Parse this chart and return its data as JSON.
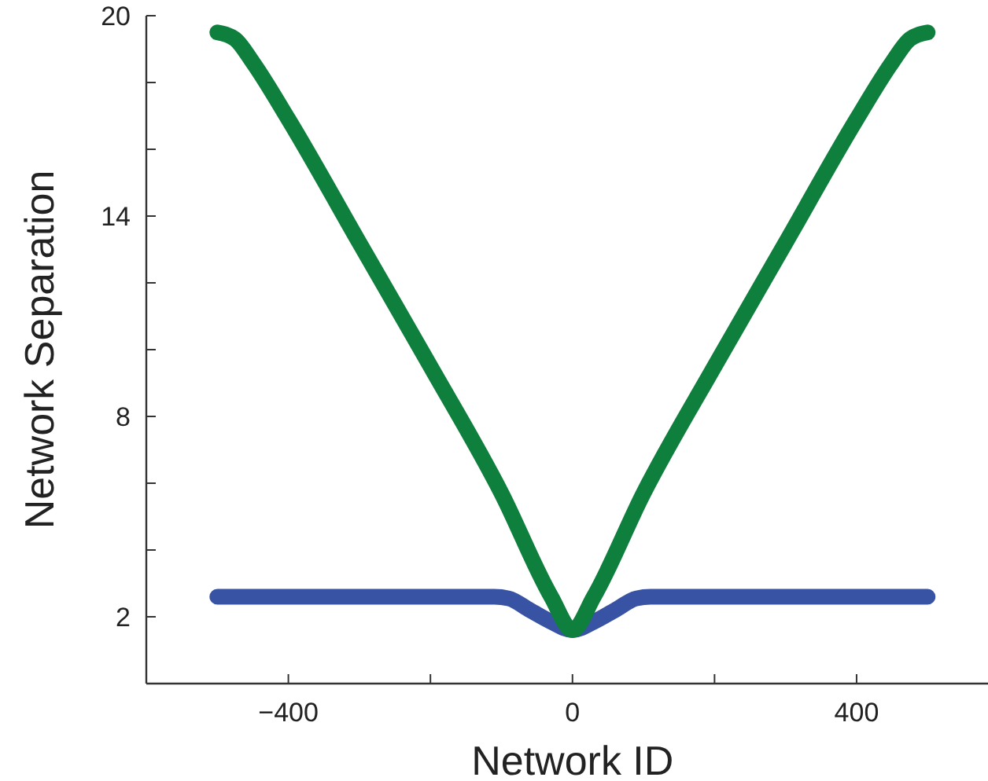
{
  "chart_data": {
    "type": "line",
    "xlabel": "Network ID",
    "ylabel": "Network Separation",
    "xlim": [
      -600,
      585
    ],
    "ylim": [
      0,
      20
    ],
    "xticks": [
      -400,
      {
        "value": -200,
        "label": null
      },
      0,
      {
        "value": 200,
        "label": null
      },
      400
    ],
    "yticks": [
      2,
      {
        "value": 4,
        "label": null
      },
      {
        "value": 6,
        "label": null
      },
      8,
      {
        "value": 10,
        "label": null
      },
      {
        "value": 12,
        "label": null
      },
      14,
      {
        "value": 16,
        "label": null
      },
      {
        "value": 18,
        "label": null
      },
      20
    ],
    "grid": false,
    "marker": "none",
    "line_style": "solid",
    "series": [
      {
        "color": "#3953a4",
        "x": [
          -500,
          -300,
          -110,
          -90,
          -60,
          -30,
          0,
          30,
          60,
          90,
          110,
          300,
          500
        ],
        "values": [
          2.6,
          2.6,
          2.6,
          2.55,
          2.2,
          1.85,
          1.6,
          1.85,
          2.2,
          2.55,
          2.6,
          2.6,
          2.6
        ]
      },
      {
        "color": "#0f7f3e",
        "x": [
          -500,
          -475,
          -450,
          -400,
          -300,
          -200,
          -100,
          -30,
          0,
          30,
          100,
          200,
          300,
          400,
          450,
          475,
          500
        ],
        "values": [
          19.5,
          19.3,
          18.6,
          16.9,
          13.2,
          9.5,
          5.7,
          2.6,
          1.6,
          2.6,
          5.7,
          9.5,
          13.2,
          16.9,
          18.6,
          19.3,
          19.5
        ]
      }
    ]
  }
}
